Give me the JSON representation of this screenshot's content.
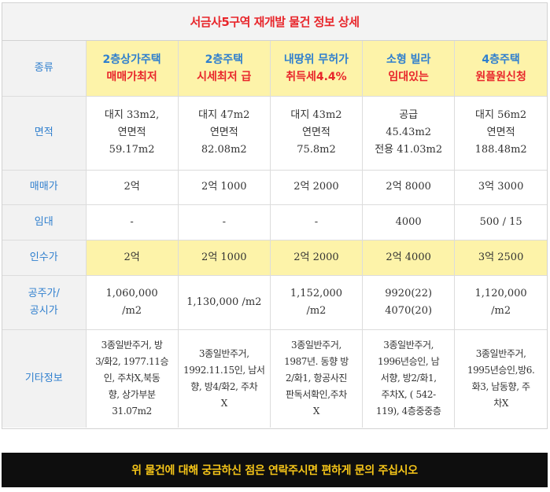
{
  "title": "서금사5구역 재개발 물건 정보 상세",
  "labels": {
    "kind": "종류",
    "area": "면적",
    "sale": "매매가",
    "rent": "임대",
    "takeover": "인수가",
    "price_line1": "공주가/",
    "price_line2": "공시가",
    "etc": "기타정보"
  },
  "columns": [
    {
      "kind_top": "2층상가주택",
      "kind_bottom": "매매가최저",
      "area": [
        "대지 33m2,",
        "연면적",
        "59.17m2"
      ],
      "sale": "2억",
      "rent": "-",
      "takeover": "2억",
      "price": [
        "1,060,000",
        "/m2"
      ],
      "etc": [
        "3종일반주거, 방",
        "3/화2, 1977.11승",
        "인, 주차X,북동",
        "향, 상가부분",
        "31.07m2"
      ]
    },
    {
      "kind_top": "2층주택",
      "kind_bottom": "시세최저 급",
      "area": [
        "대지 47m2",
        "연면적",
        "82.08m2"
      ],
      "sale": "2억 1000",
      "rent": "-",
      "takeover": "2억 1000",
      "price": [
        "1,130,000 /m2"
      ],
      "etc": [
        "3종일반주거,",
        "1992.11.15인, 남서",
        "향, 방4/화2, 주차",
        "X"
      ]
    },
    {
      "kind_top": "내땅위 무허가",
      "kind_bottom": "취득세4.4%",
      "area": [
        "대지 43m2",
        "연면적",
        "75.8m2"
      ],
      "sale": "2억 2000",
      "rent": "-",
      "takeover": "2억 2000",
      "price": [
        "1,152,000",
        "/m2"
      ],
      "etc": [
        "3종일반주거,",
        "1987년. 동향 방",
        "2/화1, 항공사진",
        "판독서확인,주차",
        "X"
      ]
    },
    {
      "kind_top": "소형 빌라",
      "kind_bottom": "임대있는",
      "area": [
        "공급",
        "45.43m2",
        "전용 41.03m2"
      ],
      "sale": "2억 8000",
      "rent": "4000",
      "takeover": "2억 4000",
      "price": [
        "9920(22)",
        "4070(20)"
      ],
      "etc": [
        "3종일반주거,",
        "1996년승인, 남",
        "서향, 방2/화1,",
        "주차X, ( 542-",
        "119), 4층중중층"
      ]
    },
    {
      "kind_top": "4층주택",
      "kind_bottom": "원플원신청",
      "area": [
        "대지 56m2",
        "연면적",
        "188.48m2"
      ],
      "sale": "3억 3000",
      "rent": "500 / 15",
      "takeover": "3억 2500",
      "price": [
        "1,120,000",
        "/m2"
      ],
      "etc": [
        "3종일반주거,",
        "1995년승인,방6.",
        "화3, 남동향, 주",
        "차X"
      ]
    }
  ],
  "footer": "위 물건에 대해 궁금하신 점은 연락주시면 편하게 문의 주십시오"
}
